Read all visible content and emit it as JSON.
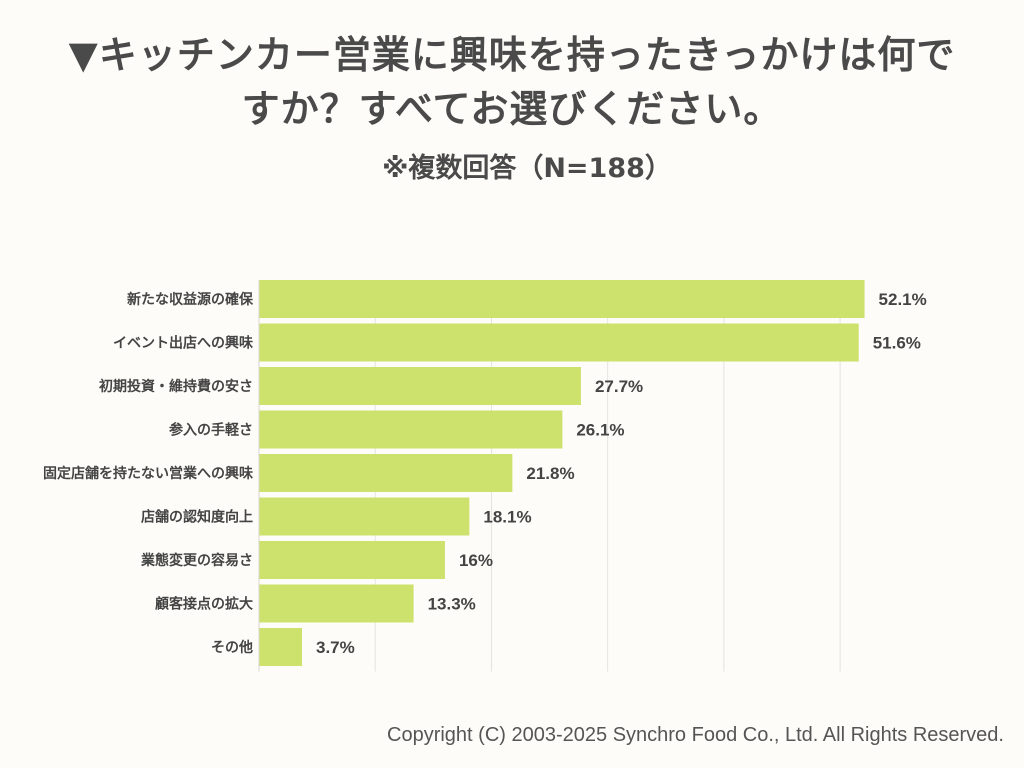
{
  "title_line1": "▼キッチンカー営業に興味を持ったきっかけは何で",
  "title_line2": "すか？すべてお選びください。",
  "subtitle": "※複数回答（N=188）",
  "copyright": "Copyright (C) 2003-2025  Synchro Food Co., Ltd. All Rights Reserved.",
  "chart_data": {
    "type": "bar",
    "orientation": "horizontal",
    "categories": [
      "新たな収益源の確保",
      "イベント出店への興味",
      "初期投資・維持費の安さ",
      "参入の手軽さ",
      "固定店舗を持たない営業への興味",
      "店舗の認知度向上",
      "業態変更の容易さ",
      "顧客接点の拡大",
      "その他"
    ],
    "values": [
      52.1,
      51.6,
      27.7,
      26.1,
      21.8,
      18.1,
      16,
      13.3,
      3.7
    ],
    "value_labels": [
      "52.1%",
      "51.6%",
      "27.7%",
      "26.1%",
      "21.8%",
      "18.1%",
      "16%",
      "13.3%",
      "3.7%"
    ],
    "xlim": [
      0,
      53
    ],
    "grid": true,
    "bar_color": "#cde26c"
  }
}
